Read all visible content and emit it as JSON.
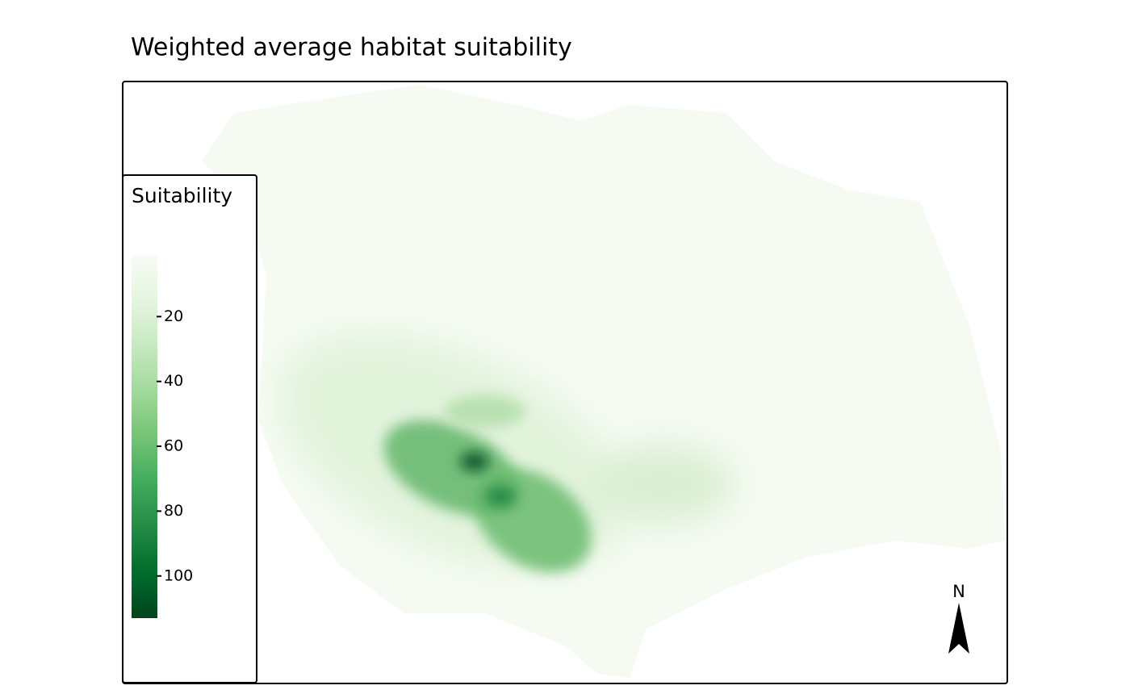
{
  "title": "Weighted average habitat suitability",
  "legend": {
    "title": "Suitability",
    "range": [
      1,
      113
    ],
    "ticks": [
      20,
      40,
      60,
      80,
      100
    ],
    "colors": [
      "#f7fcf5",
      "#e5f5e0",
      "#c7e9c0",
      "#a1d99b",
      "#74c476",
      "#41ab5d",
      "#238b45",
      "#006d2c",
      "#00441b"
    ]
  },
  "north_label": "N"
}
